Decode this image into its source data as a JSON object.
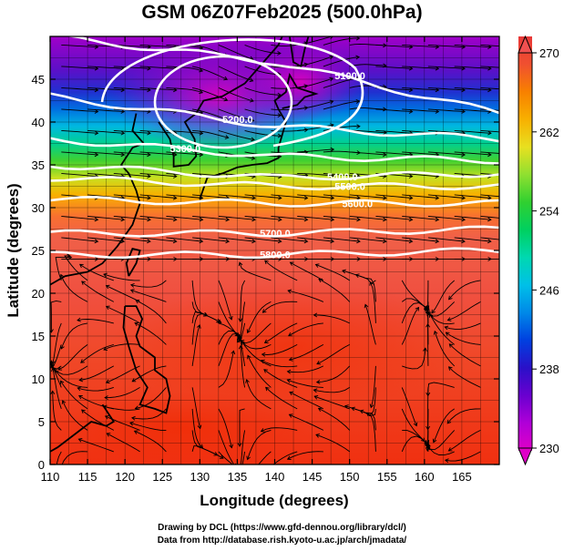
{
  "title": "GSM 06Z07Feb2025 (500.0hPa)",
  "x_axis": {
    "label": "Longitude (degrees)",
    "range": [
      110,
      170
    ],
    "ticks": [
      "110",
      "115",
      "120",
      "125",
      "130",
      "135",
      "140",
      "145",
      "150",
      "155",
      "160",
      "165"
    ]
  },
  "y_axis": {
    "label": "Latitude  (degrees)",
    "range": [
      0,
      50
    ],
    "ticks": [
      "0",
      "5",
      "10",
      "15",
      "20",
      "25",
      "30",
      "35",
      "40",
      "45"
    ]
  },
  "colorbar": {
    "ticks": [
      "230",
      "238",
      "246",
      "254",
      "262",
      "270"
    ],
    "range": [
      230,
      270
    ],
    "colors": [
      "#e000c8",
      "#b000d8",
      "#6a00d0",
      "#2a10c8",
      "#0040e0",
      "#0088e8",
      "#00c0e8",
      "#00d8b0",
      "#00d060",
      "#30d030",
      "#90e030",
      "#e8e020",
      "#f8b000",
      "#f88000",
      "#f05030",
      "#e83838"
    ]
  },
  "contours": [
    {
      "label": "5100.0",
      "lat_west": 50,
      "lat_mid": 47,
      "lat_east": 41
    },
    {
      "label": "5200.0",
      "lat_west": 43,
      "lat_mid": 39.5,
      "lat_east": 38
    },
    {
      "label": "5300.0",
      "lat_west": 38,
      "lat_mid": 36,
      "lat_east": 35.5
    },
    {
      "label": "5400.0",
      "lat_west": 35,
      "lat_mid": 33.5,
      "lat_east": 34
    },
    {
      "label": "5500.0",
      "lat_west": 33.5,
      "lat_mid": 32.5,
      "lat_east": 32.5
    },
    {
      "label": "5600.0",
      "lat_west": 31,
      "lat_mid": 30.5,
      "lat_east": 30.5
    },
    {
      "label": "5700.0",
      "lat_west": 27,
      "lat_mid": 27,
      "lat_east": 27.5
    },
    {
      "label": "5800.0",
      "lat_west": 24.5,
      "lat_mid": 24.5,
      "lat_east": 25
    }
  ],
  "credits": {
    "line1": "Drawing by DCL (https://www.gfd-dennou.org/library/dcl/)",
    "line2": "Data from http://database.rish.kyoto-u.ac.jp/arch/jmadata/"
  }
}
